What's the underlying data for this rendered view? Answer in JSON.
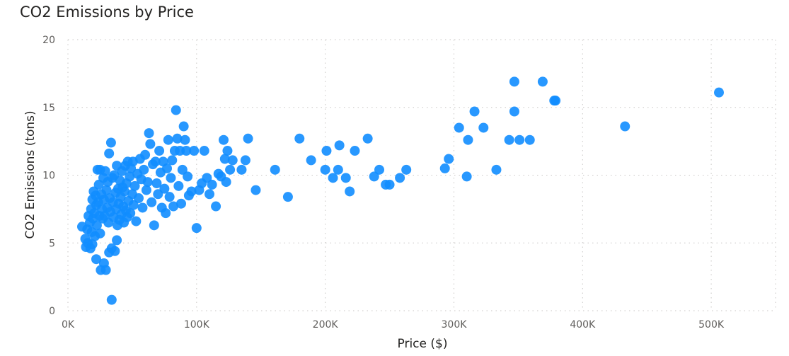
{
  "title": "CO2 Emissions by Price",
  "colors": {
    "point": "#118dff"
  },
  "chart_data": {
    "type": "scatter",
    "title": "CO2 Emissions by Price",
    "xlabel": "Price ($)",
    "ylabel": "CO2 Emissions (tons)",
    "xlim": [
      0,
      550000
    ],
    "ylim": [
      0,
      20
    ],
    "xticks": [
      0,
      100000,
      200000,
      300000,
      400000,
      500000
    ],
    "xtick_labels": [
      "0K",
      "100K",
      "200K",
      "300K",
      "400K",
      "500K"
    ],
    "yticks": [
      0,
      5,
      10,
      15,
      20
    ],
    "ytick_labels": [
      "0",
      "5",
      "10",
      "15",
      "20"
    ],
    "grid": true,
    "points": [
      {
        "x": 11000,
        "y": 6.2
      },
      {
        "x": 13500,
        "y": 5.3
      },
      {
        "x": 14000,
        "y": 4.7
      },
      {
        "x": 15000,
        "y": 6.0
      },
      {
        "x": 15500,
        "y": 5.0
      },
      {
        "x": 16000,
        "y": 7.0
      },
      {
        "x": 17000,
        "y": 6.5
      },
      {
        "x": 17500,
        "y": 4.6
      },
      {
        "x": 18000,
        "y": 7.5
      },
      {
        "x": 18500,
        "y": 5.8
      },
      {
        "x": 19000,
        "y": 8.2
      },
      {
        "x": 19000,
        "y": 4.9
      },
      {
        "x": 19500,
        "y": 6.8
      },
      {
        "x": 20000,
        "y": 8.8
      },
      {
        "x": 20500,
        "y": 7.2
      },
      {
        "x": 21000,
        "y": 5.5
      },
      {
        "x": 21500,
        "y": 8.5
      },
      {
        "x": 22000,
        "y": 7.8
      },
      {
        "x": 22500,
        "y": 6.3
      },
      {
        "x": 22000,
        "y": 3.8
      },
      {
        "x": 23000,
        "y": 10.4
      },
      {
        "x": 23500,
        "y": 8.0
      },
      {
        "x": 24000,
        "y": 9.3
      },
      {
        "x": 24500,
        "y": 7.0
      },
      {
        "x": 25000,
        "y": 5.7
      },
      {
        "x": 25000,
        "y": 10.4
      },
      {
        "x": 25500,
        "y": 3.0
      },
      {
        "x": 26000,
        "y": 8.6
      },
      {
        "x": 26500,
        "y": 7.5
      },
      {
        "x": 27000,
        "y": 6.8
      },
      {
        "x": 27500,
        "y": 9.8
      },
      {
        "x": 28000,
        "y": 3.5
      },
      {
        "x": 28000,
        "y": 8.2
      },
      {
        "x": 28500,
        "y": 7.0
      },
      {
        "x": 29000,
        "y": 10.3
      },
      {
        "x": 29500,
        "y": 3.0
      },
      {
        "x": 30000,
        "y": 8.9
      },
      {
        "x": 30500,
        "y": 7.6
      },
      {
        "x": 31000,
        "y": 9.5
      },
      {
        "x": 31500,
        "y": 6.5
      },
      {
        "x": 32000,
        "y": 11.6
      },
      {
        "x": 32000,
        "y": 4.3
      },
      {
        "x": 32500,
        "y": 8.3
      },
      {
        "x": 33000,
        "y": 7.3
      },
      {
        "x": 33500,
        "y": 12.4
      },
      {
        "x": 34000,
        "y": 4.6
      },
      {
        "x": 34000,
        "y": 0.8
      },
      {
        "x": 34500,
        "y": 9.8
      },
      {
        "x": 35000,
        "y": 8.0
      },
      {
        "x": 35500,
        "y": 6.9
      },
      {
        "x": 36000,
        "y": 10.0
      },
      {
        "x": 36500,
        "y": 4.4
      },
      {
        "x": 37000,
        "y": 8.7
      },
      {
        "x": 37500,
        "y": 7.5
      },
      {
        "x": 38000,
        "y": 10.7
      },
      {
        "x": 38000,
        "y": 5.2
      },
      {
        "x": 38500,
        "y": 6.3
      },
      {
        "x": 39000,
        "y": 9.0
      },
      {
        "x": 39500,
        "y": 7.9
      },
      {
        "x": 40000,
        "y": 6.7
      },
      {
        "x": 40500,
        "y": 9.6
      },
      {
        "x": 41000,
        "y": 8.4
      },
      {
        "x": 41500,
        "y": 7.1
      },
      {
        "x": 42000,
        "y": 10.3
      },
      {
        "x": 42500,
        "y": 9.1
      },
      {
        "x": 43000,
        "y": 7.7
      },
      {
        "x": 43500,
        "y": 6.5
      },
      {
        "x": 44000,
        "y": 8.8
      },
      {
        "x": 44500,
        "y": 10.7
      },
      {
        "x": 45000,
        "y": 7.4
      },
      {
        "x": 45500,
        "y": 9.4
      },
      {
        "x": 46000,
        "y": 6.9
      },
      {
        "x": 46500,
        "y": 11.0
      },
      {
        "x": 47000,
        "y": 8.1
      },
      {
        "x": 48000,
        "y": 9.9
      },
      {
        "x": 48500,
        "y": 7.2
      },
      {
        "x": 49000,
        "y": 10.5
      },
      {
        "x": 50000,
        "y": 8.6
      },
      {
        "x": 50500,
        "y": 11.0
      },
      {
        "x": 51000,
        "y": 7.8
      },
      {
        "x": 52000,
        "y": 9.2
      },
      {
        "x": 53000,
        "y": 6.6
      },
      {
        "x": 54000,
        "y": 10.1
      },
      {
        "x": 55000,
        "y": 8.3
      },
      {
        "x": 56000,
        "y": 11.2
      },
      {
        "x": 57000,
        "y": 9.7
      },
      {
        "x": 58000,
        "y": 7.6
      },
      {
        "x": 59000,
        "y": 10.4
      },
      {
        "x": 60000,
        "y": 11.5
      },
      {
        "x": 61000,
        "y": 8.9
      },
      {
        "x": 62000,
        "y": 9.5
      },
      {
        "x": 63000,
        "y": 13.1
      },
      {
        "x": 64000,
        "y": 12.3
      },
      {
        "x": 65000,
        "y": 8.0
      },
      {
        "x": 66000,
        "y": 10.8
      },
      {
        "x": 67000,
        "y": 6.3
      },
      {
        "x": 68000,
        "y": 11.0
      },
      {
        "x": 69000,
        "y": 9.4
      },
      {
        "x": 70000,
        "y": 8.6
      },
      {
        "x": 71000,
        "y": 11.8
      },
      {
        "x": 72000,
        "y": 10.2
      },
      {
        "x": 73000,
        "y": 7.6
      },
      {
        "x": 74000,
        "y": 11.0
      },
      {
        "x": 75000,
        "y": 9.0
      },
      {
        "x": 76000,
        "y": 7.2
      },
      {
        "x": 77000,
        "y": 10.5
      },
      {
        "x": 78000,
        "y": 12.6
      },
      {
        "x": 79000,
        "y": 8.4
      },
      {
        "x": 80000,
        "y": 9.8
      },
      {
        "x": 81000,
        "y": 11.1
      },
      {
        "x": 82000,
        "y": 7.7
      },
      {
        "x": 83000,
        "y": 11.8
      },
      {
        "x": 84000,
        "y": 14.8
      },
      {
        "x": 85000,
        "y": 12.7
      },
      {
        "x": 86000,
        "y": 9.2
      },
      {
        "x": 87000,
        "y": 11.8
      },
      {
        "x": 88000,
        "y": 7.9
      },
      {
        "x": 89000,
        "y": 10.4
      },
      {
        "x": 90000,
        "y": 13.6
      },
      {
        "x": 91000,
        "y": 12.6
      },
      {
        "x": 92000,
        "y": 11.8
      },
      {
        "x": 93000,
        "y": 9.9
      },
      {
        "x": 94000,
        "y": 8.5
      },
      {
        "x": 96000,
        "y": 8.8
      },
      {
        "x": 98000,
        "y": 11.8
      },
      {
        "x": 100000,
        "y": 6.1
      },
      {
        "x": 102000,
        "y": 8.9
      },
      {
        "x": 104000,
        "y": 9.4
      },
      {
        "x": 106000,
        "y": 11.8
      },
      {
        "x": 108000,
        "y": 9.8
      },
      {
        "x": 110000,
        "y": 8.6
      },
      {
        "x": 112000,
        "y": 9.3
      },
      {
        "x": 115000,
        "y": 7.7
      },
      {
        "x": 117000,
        "y": 10.1
      },
      {
        "x": 119000,
        "y": 9.9
      },
      {
        "x": 121000,
        "y": 12.6
      },
      {
        "x": 122000,
        "y": 11.2
      },
      {
        "x": 123000,
        "y": 9.5
      },
      {
        "x": 124000,
        "y": 11.8
      },
      {
        "x": 126000,
        "y": 10.4
      },
      {
        "x": 128000,
        "y": 11.1
      },
      {
        "x": 135000,
        "y": 10.4
      },
      {
        "x": 138000,
        "y": 11.1
      },
      {
        "x": 140000,
        "y": 12.7
      },
      {
        "x": 146000,
        "y": 8.9
      },
      {
        "x": 161000,
        "y": 10.4
      },
      {
        "x": 171000,
        "y": 8.4
      },
      {
        "x": 180000,
        "y": 12.7
      },
      {
        "x": 189000,
        "y": 11.1
      },
      {
        "x": 200000,
        "y": 10.4
      },
      {
        "x": 201000,
        "y": 11.8
      },
      {
        "x": 206000,
        "y": 9.8
      },
      {
        "x": 210000,
        "y": 10.4
      },
      {
        "x": 211000,
        "y": 12.2
      },
      {
        "x": 216000,
        "y": 9.8
      },
      {
        "x": 219000,
        "y": 8.8
      },
      {
        "x": 223000,
        "y": 11.8
      },
      {
        "x": 233000,
        "y": 12.7
      },
      {
        "x": 238000,
        "y": 9.9
      },
      {
        "x": 242000,
        "y": 10.4
      },
      {
        "x": 247000,
        "y": 9.3
      },
      {
        "x": 250000,
        "y": 9.3
      },
      {
        "x": 258000,
        "y": 9.8
      },
      {
        "x": 263000,
        "y": 10.4
      },
      {
        "x": 293000,
        "y": 10.5
      },
      {
        "x": 296000,
        "y": 11.2
      },
      {
        "x": 304000,
        "y": 13.5
      },
      {
        "x": 310000,
        "y": 9.9
      },
      {
        "x": 311000,
        "y": 12.6
      },
      {
        "x": 316000,
        "y": 14.7
      },
      {
        "x": 323000,
        "y": 13.5
      },
      {
        "x": 333000,
        "y": 10.4
      },
      {
        "x": 343000,
        "y": 12.6
      },
      {
        "x": 347000,
        "y": 14.7
      },
      {
        "x": 347000,
        "y": 16.9
      },
      {
        "x": 351000,
        "y": 12.6
      },
      {
        "x": 359000,
        "y": 12.6
      },
      {
        "x": 369000,
        "y": 16.9
      },
      {
        "x": 378000,
        "y": 15.5
      },
      {
        "x": 379000,
        "y": 15.5
      },
      {
        "x": 433000,
        "y": 13.6
      },
      {
        "x": 506000,
        "y": 16.1
      }
    ]
  }
}
